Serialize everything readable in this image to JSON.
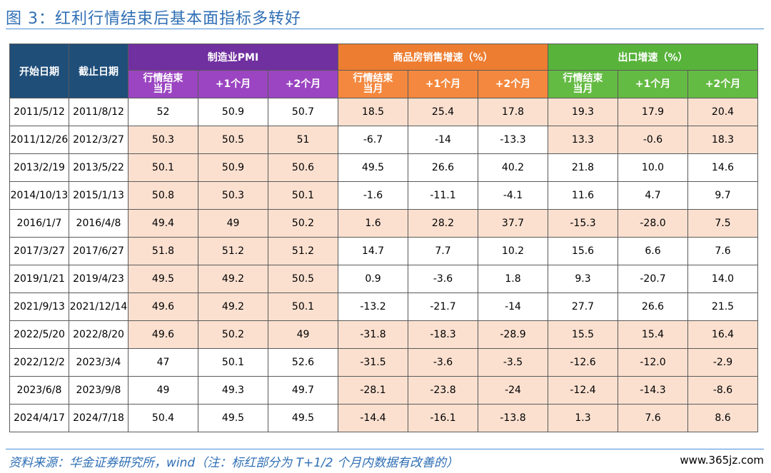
{
  "title": "图 3：红利行情结束后基本面指标多转好",
  "headers": {
    "start_date": "开始日期",
    "end_date": "截止日期",
    "pmi_group": "制造业PMI",
    "house_group": "商品房销售增速（%）",
    "export_group": "出口增速（%）",
    "sub_current": "行情结束当月",
    "sub_plus1": "+1个月",
    "sub_plus2": "+2个月"
  },
  "rows": [
    {
      "start": "2011/5/12",
      "end": "2011/8/12",
      "pmi": [
        "52",
        "50.9",
        "50.7"
      ],
      "house": [
        "18.5",
        "25.4",
        "17.8"
      ],
      "export": [
        "19.3",
        "17.9",
        "20.4"
      ],
      "hl": {
        "pmi": [
          false,
          false,
          false
        ],
        "house": [
          true,
          true,
          true
        ],
        "export": [
          true,
          true,
          true
        ]
      }
    },
    {
      "start": "2011/12/26",
      "end": "2012/3/27",
      "pmi": [
        "50.3",
        "50.5",
        "51"
      ],
      "house": [
        "-6.7",
        "-14",
        "-13.3"
      ],
      "export": [
        "13.3",
        "-0.6",
        "18.3"
      ],
      "hl": {
        "pmi": [
          true,
          true,
          true
        ],
        "house": [
          false,
          false,
          false
        ],
        "export": [
          true,
          true,
          true
        ]
      }
    },
    {
      "start": "2013/2/19",
      "end": "2013/5/22",
      "pmi": [
        "50.1",
        "50.9",
        "50.6"
      ],
      "house": [
        "49.5",
        "26.6",
        "40.2"
      ],
      "export": [
        "21.8",
        "10.0",
        "14.6"
      ],
      "hl": {
        "pmi": [
          true,
          true,
          true
        ],
        "house": [
          false,
          false,
          false
        ],
        "export": [
          false,
          false,
          false
        ]
      }
    },
    {
      "start": "2014/10/13",
      "end": "2015/1/13",
      "pmi": [
        "50.8",
        "50.3",
        "50.1"
      ],
      "house": [
        "-1.6",
        "-11.1",
        "-4.1"
      ],
      "export": [
        "11.6",
        "4.7",
        "9.7"
      ],
      "hl": {
        "pmi": [
          true,
          true,
          true
        ],
        "house": [
          false,
          false,
          false
        ],
        "export": [
          false,
          false,
          false
        ]
      }
    },
    {
      "start": "2016/1/7",
      "end": "2016/4/8",
      "pmi": [
        "49.4",
        "49",
        "50.2"
      ],
      "house": [
        "1.6",
        "28.2",
        "37.7"
      ],
      "export": [
        "-15.3",
        "-28.0",
        "7.5"
      ],
      "hl": {
        "pmi": [
          true,
          true,
          true
        ],
        "house": [
          true,
          true,
          true
        ],
        "export": [
          true,
          true,
          true
        ]
      }
    },
    {
      "start": "2017/3/27",
      "end": "2017/6/27",
      "pmi": [
        "51.8",
        "51.2",
        "51.2"
      ],
      "house": [
        "14.7",
        "7.7",
        "10.2"
      ],
      "export": [
        "15.6",
        "6.6",
        "7.6"
      ],
      "hl": {
        "pmi": [
          true,
          true,
          true
        ],
        "house": [
          false,
          false,
          false
        ],
        "export": [
          false,
          false,
          false
        ]
      }
    },
    {
      "start": "2019/1/21",
      "end": "2019/4/23",
      "pmi": [
        "49.5",
        "49.2",
        "50.5"
      ],
      "house": [
        "0.9",
        "-3.6",
        "1.8"
      ],
      "export": [
        "9.3",
        "-20.7",
        "14.0"
      ],
      "hl": {
        "pmi": [
          true,
          true,
          true
        ],
        "house": [
          false,
          false,
          false
        ],
        "export": [
          false,
          false,
          false
        ]
      }
    },
    {
      "start": "2021/9/13",
      "end": "2021/12/14",
      "pmi": [
        "49.6",
        "49.2",
        "50.1"
      ],
      "house": [
        "-13.2",
        "-21.7",
        "-14"
      ],
      "export": [
        "27.7",
        "26.6",
        "21.5"
      ],
      "hl": {
        "pmi": [
          true,
          true,
          true
        ],
        "house": [
          false,
          false,
          false
        ],
        "export": [
          false,
          false,
          false
        ]
      }
    },
    {
      "start": "2022/5/20",
      "end": "2022/8/20",
      "pmi": [
        "49.6",
        "50.2",
        "49"
      ],
      "house": [
        "-31.8",
        "-18.3",
        "-28.9"
      ],
      "export": [
        "15.5",
        "15.4",
        "16.4"
      ],
      "hl": {
        "pmi": [
          true,
          true,
          true
        ],
        "house": [
          true,
          true,
          true
        ],
        "export": [
          true,
          true,
          true
        ]
      }
    },
    {
      "start": "2022/12/2",
      "end": "2023/3/4",
      "pmi": [
        "47",
        "50.1",
        "52.6"
      ],
      "house": [
        "-31.5",
        "-3.6",
        "-3.5"
      ],
      "export": [
        "-12.6",
        "-12.0",
        "-2.9"
      ],
      "hl": {
        "pmi": [
          false,
          false,
          false
        ],
        "house": [
          true,
          true,
          true
        ],
        "export": [
          true,
          true,
          true
        ]
      }
    },
    {
      "start": "2023/6/8",
      "end": "2023/9/8",
      "pmi": [
        "49",
        "49.3",
        "49.7"
      ],
      "house": [
        "-28.1",
        "-23.8",
        "-24"
      ],
      "export": [
        "-12.4",
        "-14.3",
        "-8.6"
      ],
      "hl": {
        "pmi": [
          false,
          false,
          false
        ],
        "house": [
          true,
          true,
          true
        ],
        "export": [
          true,
          true,
          true
        ]
      }
    },
    {
      "start": "2024/4/17",
      "end": "2024/7/18",
      "pmi": [
        "50.4",
        "49.5",
        "49.5"
      ],
      "house": [
        "-14.4",
        "-16.1",
        "-13.8"
      ],
      "export": [
        "1.3",
        "7.6",
        "8.6"
      ],
      "hl": {
        "pmi": [
          false,
          false,
          false
        ],
        "house": [
          true,
          true,
          true
        ],
        "export": [
          true,
          true,
          true
        ]
      }
    }
  ],
  "source": "资料来源：华金证券研究所，wind（注：标红部分为 T+1/2 个月内数据有改善的）",
  "watermark": "www.365jz.com",
  "colors": {
    "date_header": "#1f4e79",
    "pmi_header": "#7030a0",
    "house_header": "#ed7d31",
    "export_header": "#58b33b",
    "highlight_cell": "#fbe0d0",
    "title_blue": "#2f6fb5"
  }
}
